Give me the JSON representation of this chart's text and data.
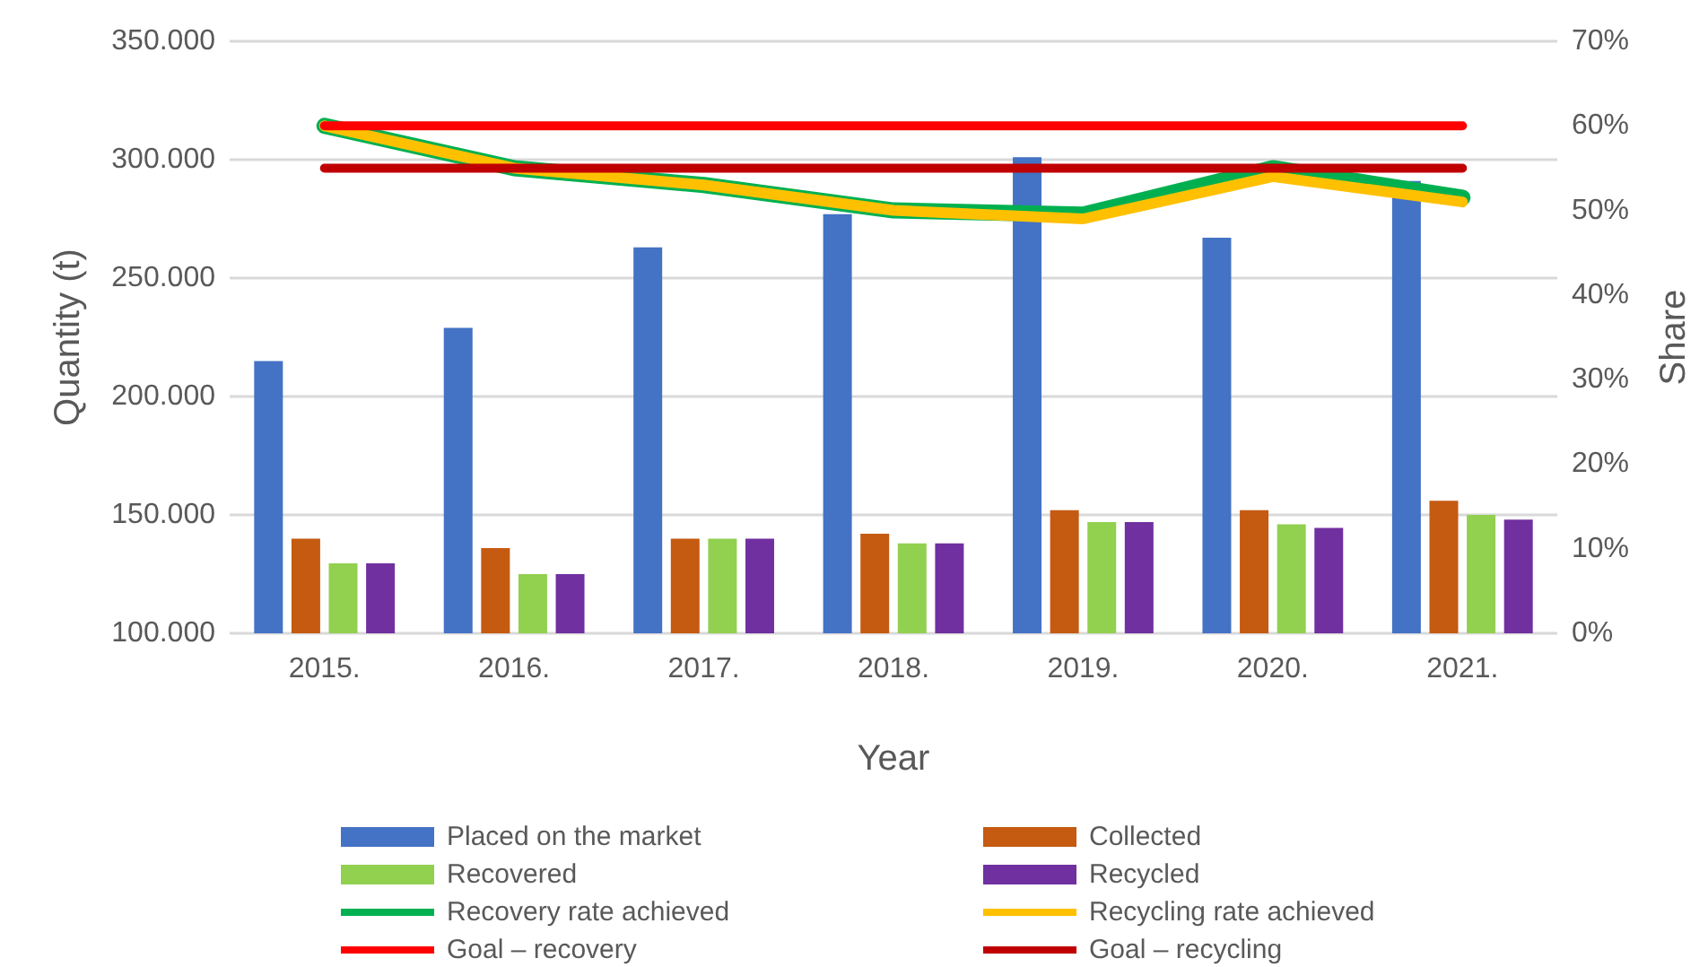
{
  "chart_data": {
    "type": "bar",
    "xlabel": "Year",
    "ylabel": "Quantity (t)",
    "y2label": "Share",
    "categories": [
      "2015.",
      "2016.",
      "2017.",
      "2018.",
      "2019.",
      "2020.",
      "2021."
    ],
    "series": [
      {
        "name": "Placed on the market",
        "color": "#4472c4",
        "values": [
          215000,
          229000,
          263000,
          277000,
          301000,
          267000,
          291000
        ]
      },
      {
        "name": "Collected",
        "color": "#c55a11",
        "values": [
          140000,
          136000,
          140000,
          142000,
          152000,
          152000,
          156000
        ]
      },
      {
        "name": "Recovered",
        "color": "#92d050",
        "values": [
          129500,
          125000,
          140000,
          138000,
          147000,
          146000,
          150000
        ]
      },
      {
        "name": "Recycled",
        "color": "#7030a0",
        "values": [
          129500,
          125000,
          140000,
          138000,
          147000,
          144500,
          148000
        ]
      },
      {
        "name": "Recovery rate achieved",
        "type": "line",
        "axis": "y2",
        "color": "#00b050",
        "values": [
          60,
          55,
          53,
          50,
          49.5,
          55,
          51.5
        ]
      },
      {
        "name": "Recycling rate achieved",
        "type": "line",
        "axis": "y2",
        "color": "#ffc000",
        "values": [
          60,
          55,
          53,
          50,
          49,
          54,
          51
        ]
      },
      {
        "name": "Goal – recovery",
        "type": "line",
        "axis": "y2",
        "color": "#ff0000",
        "values": [
          60,
          60,
          60,
          60,
          60,
          60,
          60
        ]
      },
      {
        "name": "Goal – recycling",
        "type": "line",
        "axis": "y2",
        "color": "#c00000",
        "values": [
          55,
          55,
          55,
          55,
          55,
          55,
          55
        ]
      }
    ],
    "ylim": [
      100000,
      350000
    ],
    "yticks": [
      {
        "value": 100000,
        "label": "100.000"
      },
      {
        "value": 150000,
        "label": "150.000"
      },
      {
        "value": 200000,
        "label": "200.000"
      },
      {
        "value": 250000,
        "label": "250.000"
      },
      {
        "value": 300000,
        "label": "300.000"
      },
      {
        "value": 350000,
        "label": "350.000"
      }
    ],
    "y2lim": [
      0,
      70
    ],
    "y2ticks": [
      {
        "value": 0,
        "label": "0%"
      },
      {
        "value": 10,
        "label": "10%"
      },
      {
        "value": 20,
        "label": "20%"
      },
      {
        "value": 30,
        "label": "30%"
      },
      {
        "value": 40,
        "label": "40%"
      },
      {
        "value": 50,
        "label": "50%"
      },
      {
        "value": 60,
        "label": "60%"
      },
      {
        "value": 70,
        "label": "70%"
      }
    ],
    "grid": "y",
    "legend": "bottom",
    "marker": "none",
    "line_style": "solid"
  }
}
